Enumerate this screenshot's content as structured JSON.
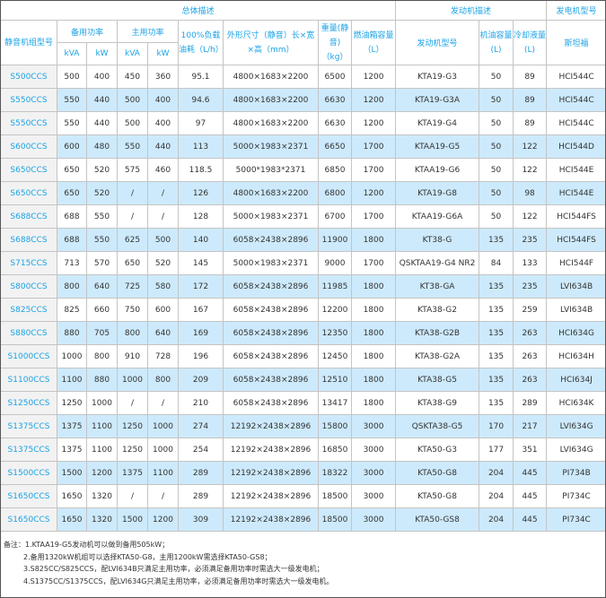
{
  "header": {
    "overall": "总体描述",
    "engine_desc": "发动机描述",
    "gen_model": "发电机型号",
    "model": "静音机组型号",
    "standby": "备用功率",
    "prime": "主用功率",
    "fuel_consumption": "100%负载油耗（L/h）",
    "dimensions": "外形尺寸（静音）长×宽×高（mm）",
    "weight": "重量(静音)（kg）",
    "fuel_tank": "燃油箱容量（L）",
    "engine_model": "发动机型号",
    "oil_capacity": "机油容量(L)",
    "coolant": "冷却液量(L)",
    "stamford": "斯坦福",
    "kva": "kVA",
    "kw": "kW"
  },
  "rows": [
    [
      "S500CCS",
      "500",
      "400",
      "450",
      "360",
      "95.1",
      "4800×1683×2200",
      "6500",
      "1200",
      "KTA19-G3",
      "50",
      "89",
      "HCI544C"
    ],
    [
      "S550CCS",
      "550",
      "440",
      "500",
      "400",
      "94.6",
      "4800×1683×2200",
      "6630",
      "1200",
      "KTA19-G3A",
      "50",
      "89",
      "HCI544C"
    ],
    [
      "S550CCS",
      "550",
      "440",
      "500",
      "400",
      "97",
      "4800×1683×2200",
      "6630",
      "1200",
      "KTA19-G4",
      "50",
      "89",
      "HCI544C"
    ],
    [
      "S600CCS",
      "600",
      "480",
      "550",
      "440",
      "113",
      "5000×1983×2371",
      "6650",
      "1700",
      "KTAA19-G5",
      "50",
      "122",
      "HCI544D"
    ],
    [
      "S650CCS",
      "650",
      "520",
      "575",
      "460",
      "118.5",
      "5000*1983*2371",
      "6850",
      "1700",
      "KTAA19-G6",
      "50",
      "122",
      "HCI544E"
    ],
    [
      "S650CCS",
      "650",
      "520",
      "/",
      "/",
      "126",
      "4800×1683×2200",
      "6800",
      "1200",
      "KTA19-G8",
      "50",
      "98",
      "HCI544E"
    ],
    [
      "S688CCS",
      "688",
      "550",
      "/",
      "/",
      "128",
      "5000×1983×2371",
      "6700",
      "1700",
      "KTAA19-G6A",
      "50",
      "122",
      "HCI544FS"
    ],
    [
      "S688CCS",
      "688",
      "550",
      "625",
      "500",
      "140",
      "6058×2438×2896",
      "11900",
      "1800",
      "KT38-G",
      "135",
      "235",
      "HCI544FS"
    ],
    [
      "S715CCS",
      "713",
      "570",
      "650",
      "520",
      "145",
      "5000×1983×2371",
      "9000",
      "1700",
      "QSKTAA19-G4 NR2",
      "84",
      "133",
      "HCI544F"
    ],
    [
      "S800CCS",
      "800",
      "640",
      "725",
      "580",
      "172",
      "6058×2438×2896",
      "11985",
      "1800",
      "KT38-GA",
      "135",
      "235",
      "LVI634B"
    ],
    [
      "S825CCS",
      "825",
      "660",
      "750",
      "600",
      "167",
      "6058×2438×2896",
      "12200",
      "1800",
      "KTA38-G2",
      "135",
      "259",
      "LVI634B"
    ],
    [
      "S880CCS",
      "880",
      "705",
      "800",
      "640",
      "169",
      "6058×2438×2896",
      "12350",
      "1800",
      "KTA38-G2B",
      "135",
      "263",
      "HCI634G"
    ],
    [
      "S1000CCS",
      "1000",
      "800",
      "910",
      "728",
      "196",
      "6058×2438×2896",
      "12450",
      "1800",
      "KTA38-G2A",
      "135",
      "263",
      "HCI634H"
    ],
    [
      "S1100CCS",
      "1100",
      "880",
      "1000",
      "800",
      "209",
      "6058×2438×2896",
      "12510",
      "1800",
      "KTA38-G5",
      "135",
      "263",
      "HCI634J"
    ],
    [
      "S1250CCS",
      "1250",
      "1000",
      "/",
      "/",
      "210",
      "6058×2438×2896",
      "13417",
      "1800",
      "KTA38-G9",
      "135",
      "289",
      "HCI634K"
    ],
    [
      "S1375CCS",
      "1375",
      "1100",
      "1250",
      "1000",
      "274",
      "12192×2438×2896",
      "15800",
      "3000",
      "QSKTA38-G5",
      "170",
      "217",
      "LVI634G"
    ],
    [
      "S1375CCS",
      "1375",
      "1100",
      "1250",
      "1000",
      "254",
      "12192×2438×2896",
      "16850",
      "3000",
      "KTA50-G3",
      "177",
      "351",
      "LVI634G"
    ],
    [
      "S1500CCS",
      "1500",
      "1200",
      "1375",
      "1100",
      "289",
      "12192×2438×2896",
      "18322",
      "3000",
      "KTA50-G8",
      "204",
      "445",
      "PI734B"
    ],
    [
      "S1650CCS",
      "1650",
      "1320",
      "/",
      "/",
      "289",
      "12192×2438×2896",
      "18500",
      "3000",
      "KTA50-G8",
      "204",
      "445",
      "PI734C"
    ],
    [
      "S1650CCS",
      "1650",
      "1320",
      "1500",
      "1200",
      "309",
      "12192×2438×2896",
      "18500",
      "3000",
      "KTA50-GS8",
      "204",
      "445",
      "PI734C"
    ]
  ],
  "notes": [
    "备注：1.KTAA19-G5发动机可以做到备用505kW；",
    "2.备用1320kW机组可以选择KTA50-G8，主用1200kW需选择KTA50-GS8；",
    "3.S825CC/S825CCS，配LVI634B只满足主用功率，必须满足备用功率时需选大一级发电机；",
    "4.S1375CC/S1375CCS，配LVI634G只满足主用功率，必须满足备用功率时需选大一级发电机。"
  ],
  "colors": {
    "accent": "#1aa3e6",
    "alt_row": "#cdeafc",
    "model_col": "#f2f2f2"
  }
}
